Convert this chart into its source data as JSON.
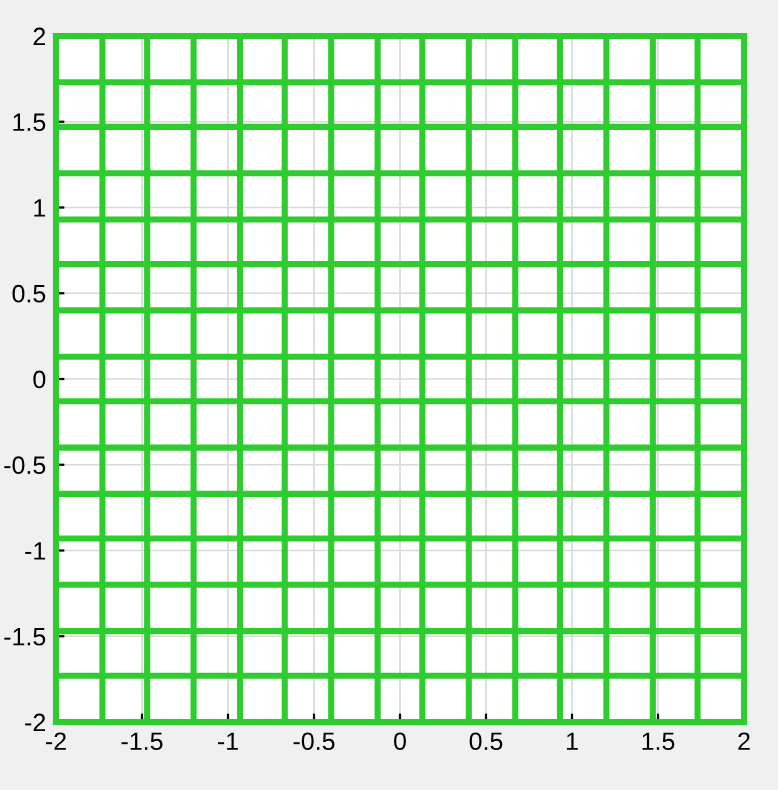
{
  "chart_data": {
    "type": "line",
    "xlim": [
      -2,
      2
    ],
    "ylim": [
      -2,
      2
    ],
    "xticks": [
      -2,
      -1.5,
      -1,
      -0.5,
      0,
      0.5,
      1,
      1.5,
      2
    ],
    "yticks": [
      -2,
      -1.5,
      -1,
      -0.5,
      0,
      0.5,
      1,
      1.5,
      2
    ],
    "grid": true,
    "marker": "none",
    "line_style": "solid",
    "series": [
      {
        "color": "#2ecc2e",
        "x": [
          -2,
          -2
        ],
        "values": [
          -2,
          2
        ]
      },
      {
        "color": "#2ecc2e",
        "x": [
          -1.73,
          -1.73
        ],
        "values": [
          -2,
          2
        ]
      },
      {
        "color": "#2ecc2e",
        "x": [
          -1.47,
          -1.47
        ],
        "values": [
          -2,
          2
        ]
      },
      {
        "color": "#2ecc2e",
        "x": [
          -1.2,
          -1.2
        ],
        "values": [
          -2,
          2
        ]
      },
      {
        "color": "#2ecc2e",
        "x": [
          -0.93,
          -0.93
        ],
        "values": [
          -2,
          2
        ]
      },
      {
        "color": "#2ecc2e",
        "x": [
          -0.67,
          -0.67
        ],
        "values": [
          -2,
          2
        ]
      },
      {
        "color": "#2ecc2e",
        "x": [
          -0.4,
          -0.4
        ],
        "values": [
          -2,
          2
        ]
      },
      {
        "color": "#2ecc2e",
        "x": [
          -0.13,
          -0.13
        ],
        "values": [
          -2,
          2
        ]
      },
      {
        "color": "#2ecc2e",
        "x": [
          0.13,
          0.13
        ],
        "values": [
          -2,
          2
        ]
      },
      {
        "color": "#2ecc2e",
        "x": [
          0.4,
          0.4
        ],
        "values": [
          -2,
          2
        ]
      },
      {
        "color": "#2ecc2e",
        "x": [
          0.67,
          0.67
        ],
        "values": [
          -2,
          2
        ]
      },
      {
        "color": "#2ecc2e",
        "x": [
          0.93,
          0.93
        ],
        "values": [
          -2,
          2
        ]
      },
      {
        "color": "#2ecc2e",
        "x": [
          1.2,
          1.2
        ],
        "values": [
          -2,
          2
        ]
      },
      {
        "color": "#2ecc2e",
        "x": [
          1.47,
          1.47
        ],
        "values": [
          -2,
          2
        ]
      },
      {
        "color": "#2ecc2e",
        "x": [
          1.73,
          1.73
        ],
        "values": [
          -2,
          2
        ]
      },
      {
        "color": "#2ecc2e",
        "x": [
          2,
          2
        ],
        "values": [
          -2,
          2
        ]
      },
      {
        "color": "#2ecc2e",
        "x": [
          -2,
          2
        ],
        "values": [
          -2,
          -2
        ]
      },
      {
        "color": "#2ecc2e",
        "x": [
          -2,
          2
        ],
        "values": [
          -1.73,
          -1.73
        ]
      },
      {
        "color": "#2ecc2e",
        "x": [
          -2,
          2
        ],
        "values": [
          -1.47,
          -1.47
        ]
      },
      {
        "color": "#2ecc2e",
        "x": [
          -2,
          2
        ],
        "values": [
          -1.2,
          -1.2
        ]
      },
      {
        "color": "#2ecc2e",
        "x": [
          -2,
          2
        ],
        "values": [
          -0.93,
          -0.93
        ]
      },
      {
        "color": "#2ecc2e",
        "x": [
          -2,
          2
        ],
        "values": [
          -0.67,
          -0.67
        ]
      },
      {
        "color": "#2ecc2e",
        "x": [
          -2,
          2
        ],
        "values": [
          -0.4,
          -0.4
        ]
      },
      {
        "color": "#2ecc2e",
        "x": [
          -2,
          2
        ],
        "values": [
          -0.13,
          -0.13
        ]
      },
      {
        "color": "#2ecc2e",
        "x": [
          -2,
          2
        ],
        "values": [
          0.13,
          0.13
        ]
      },
      {
        "color": "#2ecc2e",
        "x": [
          -2,
          2
        ],
        "values": [
          0.4,
          0.4
        ]
      },
      {
        "color": "#2ecc2e",
        "x": [
          -2,
          2
        ],
        "values": [
          0.67,
          0.67
        ]
      },
      {
        "color": "#2ecc2e",
        "x": [
          -2,
          2
        ],
        "values": [
          0.93,
          0.93
        ]
      },
      {
        "color": "#2ecc2e",
        "x": [
          -2,
          2
        ],
        "values": [
          1.2,
          1.2
        ]
      },
      {
        "color": "#2ecc2e",
        "x": [
          -2,
          2
        ],
        "values": [
          1.47,
          1.47
        ]
      },
      {
        "color": "#2ecc2e",
        "x": [
          -2,
          2
        ],
        "values": [
          1.73,
          1.73
        ]
      },
      {
        "color": "#2ecc2e",
        "x": [
          -2,
          2
        ],
        "values": [
          2,
          2
        ]
      }
    ]
  }
}
